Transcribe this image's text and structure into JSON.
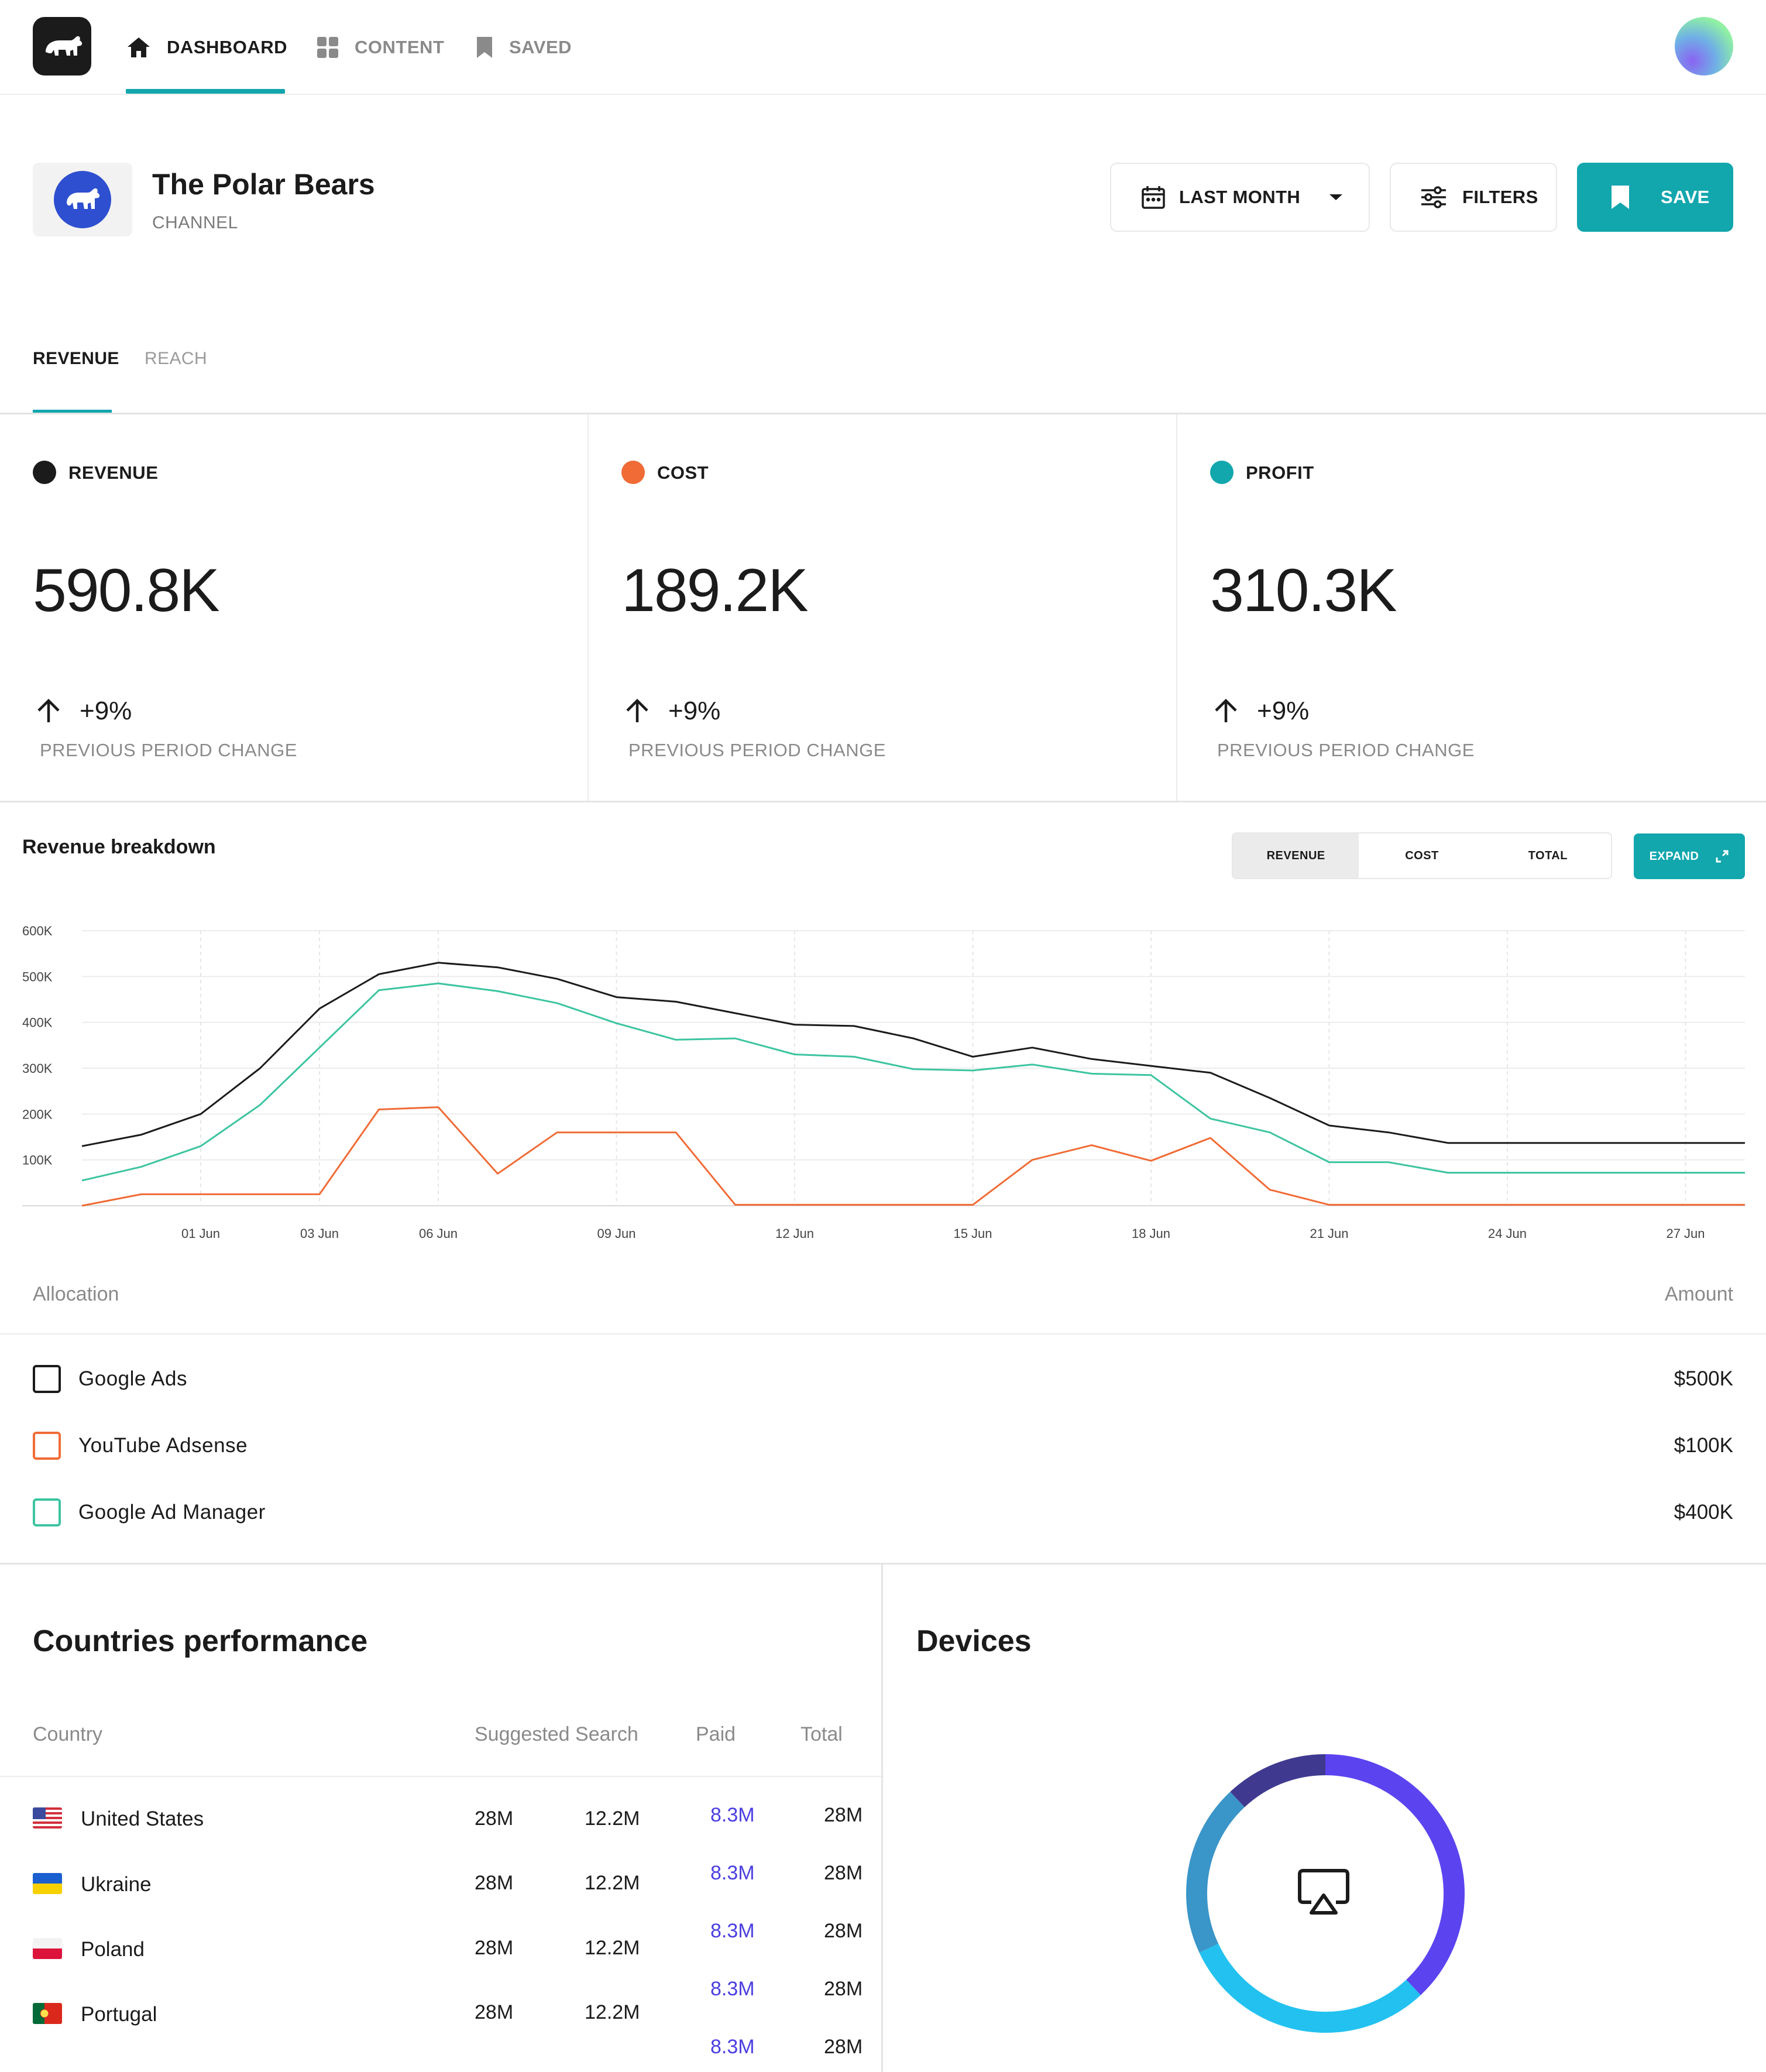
{
  "nav": {
    "items": [
      {
        "label": "DASHBOARD",
        "icon": "home-icon",
        "active": true
      },
      {
        "label": "CONTENT",
        "icon": "grid-icon",
        "active": false
      },
      {
        "label": "SAVED",
        "icon": "bookmark-icon",
        "active": false
      }
    ]
  },
  "channel": {
    "title": "The Polar Bears",
    "subtitle": "CHANNEL"
  },
  "toolbar": {
    "period_label": "LAST MONTH",
    "filters_label": "FILTERS",
    "save_label": "SAVE"
  },
  "tabs": [
    {
      "label": "REVENUE",
      "active": true
    },
    {
      "label": "REACH",
      "active": false
    }
  ],
  "kpis": [
    {
      "label": "REVENUE",
      "value": "590.8K",
      "change": "+9%",
      "note": "PREVIOUS PERIOD CHANGE",
      "color": "#1b1b1b"
    },
    {
      "label": "COST",
      "value": "189.2K",
      "change": "+9%",
      "note": "PREVIOUS PERIOD CHANGE",
      "color": "#f06b36"
    },
    {
      "label": "PROFIT",
      "value": "310.3K",
      "change": "+9%",
      "note": "PREVIOUS PERIOD CHANGE",
      "color": "#12a6ad"
    }
  ],
  "breakdown": {
    "title": "Revenue breakdown",
    "segments": [
      "REVENUE",
      "COST",
      "TOTAL"
    ],
    "active_segment": "REVENUE",
    "expand_label": "EXPAND"
  },
  "chart_data": {
    "type": "line",
    "title": "Revenue breakdown",
    "xlabel": "",
    "ylabel": "",
    "ylim": [
      0,
      600000
    ],
    "y_ticks": [
      "600K",
      "500K",
      "400K",
      "300K",
      "200K",
      "100K"
    ],
    "x_ticks": [
      "01 Jun",
      "03 Jun",
      "06 Jun",
      "09 Jun",
      "12 Jun",
      "15 Jun",
      "18 Jun",
      "21 Jun",
      "24 Jun",
      "27 Jun"
    ],
    "x": [
      "30 May",
      "31 May",
      "01 Jun",
      "02 Jun",
      "03 Jun",
      "04 Jun",
      "06 Jun",
      "07 Jun",
      "08 Jun",
      "09 Jun",
      "10 Jun",
      "11 Jun",
      "12 Jun",
      "13 Jun",
      "14 Jun",
      "15 Jun",
      "16 Jun",
      "17 Jun",
      "18 Jun",
      "19 Jun",
      "20 Jun",
      "21 Jun",
      "22 Jun",
      "23 Jun",
      "24 Jun",
      "25 Jun",
      "26 Jun",
      "27 Jun",
      "28 Jun"
    ],
    "grid": true,
    "series": [
      {
        "color": "#1b1b1b",
        "values": [
          130000,
          155000,
          200000,
          300000,
          430000,
          505000,
          530000,
          520000,
          495000,
          455000,
          445000,
          420000,
          395000,
          392000,
          365000,
          325000,
          345000,
          320000,
          305000,
          290000,
          235000,
          175000,
          160000,
          137000,
          137000,
          137000,
          137000,
          137000,
          137000
        ]
      },
      {
        "color": "#3cc4a0",
        "values": [
          55000,
          85000,
          130000,
          220000,
          345000,
          470000,
          485000,
          468000,
          442000,
          398000,
          362000,
          365000,
          330000,
          325000,
          298000,
          295000,
          308000,
          288000,
          285000,
          190000,
          160000,
          95000,
          95000,
          72000,
          72000,
          72000,
          72000,
          72000,
          72000
        ]
      },
      {
        "color": "#f06b36",
        "values": [
          0,
          25000,
          25000,
          25000,
          25000,
          210000,
          215000,
          70000,
          160000,
          160000,
          160000,
          2000,
          2000,
          2000,
          2000,
          2000,
          100000,
          132000,
          98000,
          148000,
          35000,
          2000,
          2000,
          2000,
          2000,
          2000,
          2000,
          2000,
          2000
        ]
      }
    ]
  },
  "allocation": {
    "header_left": "Allocation",
    "header_right": "Amount",
    "rows": [
      {
        "name": "Google Ads",
        "amount": "$500K",
        "color": "#1b1b1b"
      },
      {
        "name": "YouTube Adsense",
        "amount": "$100K",
        "color": "#f06b36"
      },
      {
        "name": "Google Ad Manager",
        "amount": "$400K",
        "color": "#3cc4a0"
      }
    ]
  },
  "countries": {
    "title": "Countries performance",
    "headers": {
      "country": "Country",
      "suggested": "Suggested Search",
      "paid": "Paid",
      "total": "Total"
    },
    "rows": [
      {
        "name": "United States",
        "flag": "us-flag",
        "c1": "28M",
        "c2": "12.2M",
        "paid": "8.3M",
        "total": "28M"
      },
      {
        "name": "Ukraine",
        "flag": "ua-flag",
        "c1": "28M",
        "c2": "12.2M",
        "paid": "8.3M",
        "total": "28M"
      },
      {
        "name": "Poland",
        "flag": "pl-flag",
        "c1": "28M",
        "c2": "12.2M",
        "paid": "8.3M",
        "total": "28M"
      },
      {
        "name": "Portugal",
        "flag": "pt-flag",
        "c1": "28M",
        "c2": "12.2M",
        "paid": "8.3M",
        "total": "28M"
      }
    ],
    "extra_paid": "8.3M",
    "extra_total": "28M"
  },
  "devices": {
    "title": "Devices",
    "center_icon": "airplay-icon",
    "segments": [
      {
        "color": "#5b44f0",
        "fraction": 0.38
      },
      {
        "color": "#22c1f0",
        "fraction": 0.3
      },
      {
        "color": "#3a95c9",
        "fraction": 0.2
      },
      {
        "color": "#3f3a8f",
        "fraction": 0.12
      }
    ]
  }
}
